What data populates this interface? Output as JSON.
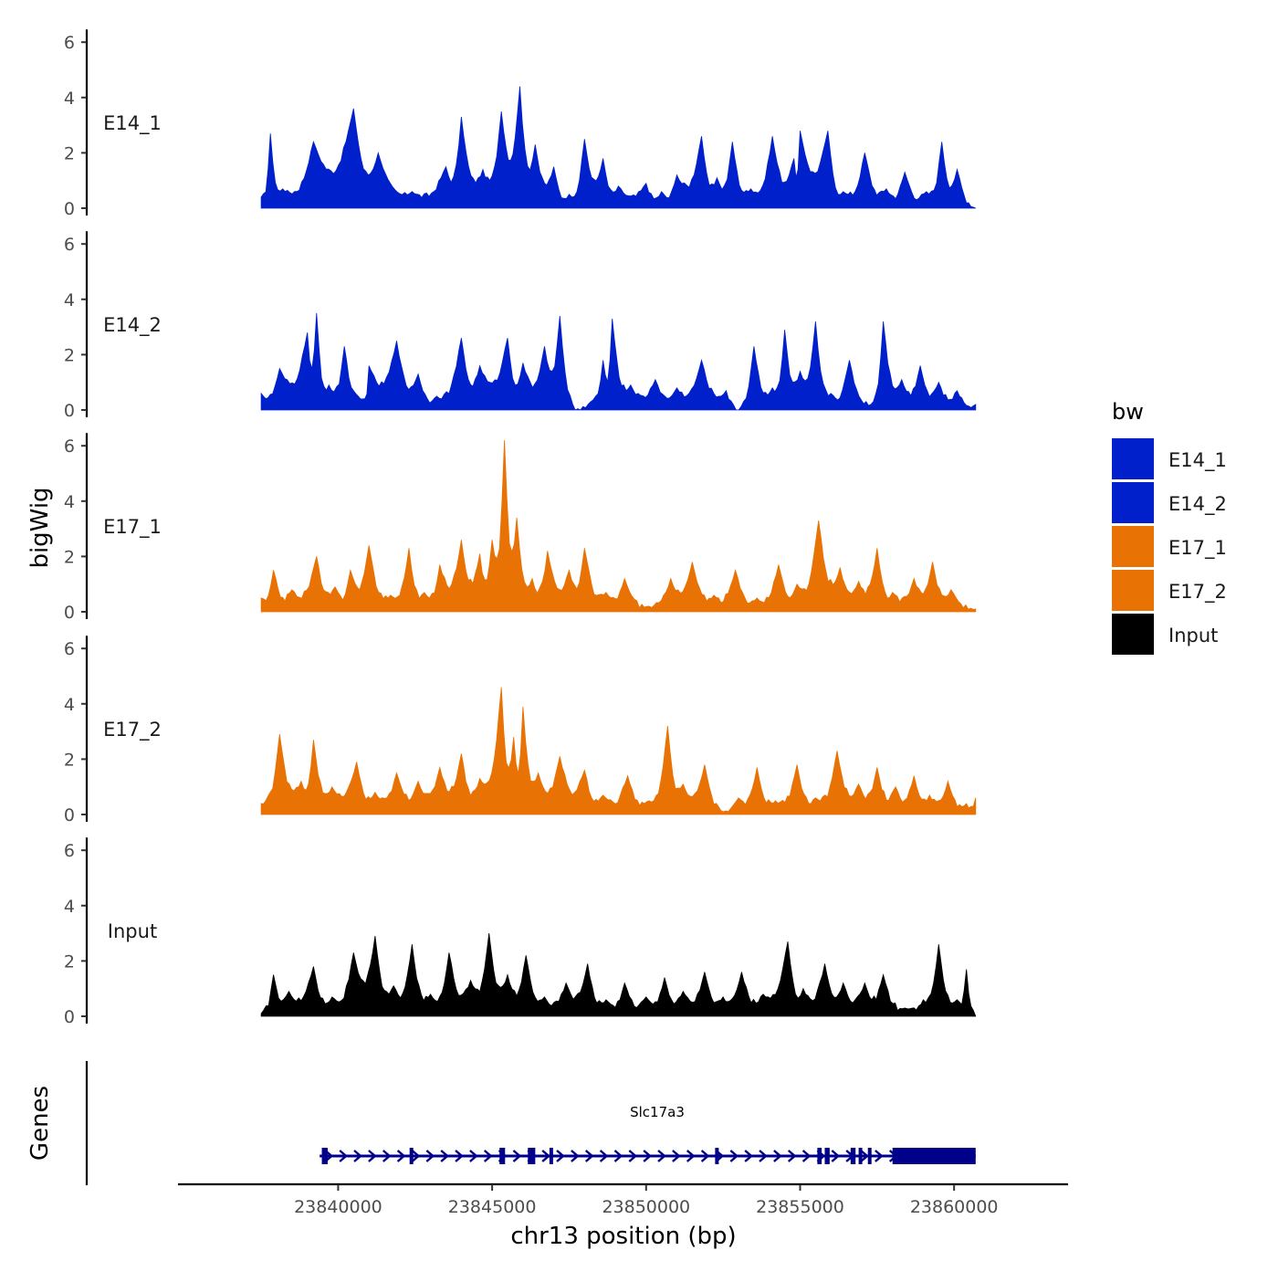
{
  "chart_data": {
    "type": "area",
    "chromosome": "chr13",
    "xlabel": "chr13 position (bp)",
    "ylabel": "bigWig",
    "genes_label": "Genes",
    "xlim": [
      23834800,
      23863700
    ],
    "x_ticks": [
      23840000,
      23845000,
      23850000,
      23855000,
      23860000
    ],
    "x_tick_labels": [
      "23840000",
      "23845000",
      "23850000",
      "23855000",
      "23860000"
    ],
    "ylim": [
      0,
      6
    ],
    "y_ticks": [
      0,
      2,
      4,
      6
    ],
    "y_tick_labels": [
      "0",
      "2",
      "4",
      "6"
    ],
    "data_range": [
      23837500,
      23860700
    ],
    "legend": {
      "title": "bw",
      "entries": [
        {
          "label": "E14_1",
          "color": "#0020CC"
        },
        {
          "label": "E14_2",
          "color": "#0020CC"
        },
        {
          "label": "E17_1",
          "color": "#E87204"
        },
        {
          "label": "E17_2",
          "color": "#E87204"
        },
        {
          "label": "Input",
          "color": "#000000"
        }
      ]
    },
    "series": [
      {
        "name": "E14_1",
        "color": "#0020CC",
        "peaks": [
          [
            23837500,
            0.4
          ],
          [
            23837800,
            2.7
          ],
          [
            23838200,
            0.7
          ],
          [
            23839200,
            2.4
          ],
          [
            23840500,
            3.6
          ],
          [
            23841300,
            2.0
          ],
          [
            23842400,
            0.6
          ],
          [
            23843500,
            1.5
          ],
          [
            23844000,
            3.3
          ],
          [
            23844700,
            1.4
          ],
          [
            23845300,
            3.5
          ],
          [
            23845900,
            4.4
          ],
          [
            23846400,
            2.3
          ],
          [
            23847000,
            1.5
          ],
          [
            23847500,
            0.5
          ],
          [
            23848000,
            2.5
          ],
          [
            23848600,
            1.8
          ],
          [
            23849100,
            0.8
          ],
          [
            23850000,
            0.9
          ],
          [
            23850500,
            0.6
          ],
          [
            23851000,
            1.2
          ],
          [
            23851800,
            2.6
          ],
          [
            23852300,
            1.1
          ],
          [
            23852800,
            2.4
          ],
          [
            23853400,
            0.7
          ],
          [
            23854100,
            2.6
          ],
          [
            23854800,
            1.8
          ],
          [
            23855000,
            2.8
          ],
          [
            23855900,
            2.8
          ],
          [
            23856400,
            0.6
          ],
          [
            23857100,
            2.0
          ],
          [
            23857800,
            0.7
          ],
          [
            23858400,
            1.3
          ],
          [
            23859100,
            0.6
          ],
          [
            23859600,
            2.4
          ],
          [
            23860100,
            1.4
          ],
          [
            23860700,
            0.0
          ]
        ]
      },
      {
        "name": "E14_2",
        "color": "#0020CC",
        "peaks": [
          [
            23837500,
            0.6
          ],
          [
            23838100,
            1.5
          ],
          [
            23839000,
            2.8
          ],
          [
            23839300,
            3.5
          ],
          [
            23839700,
            0.9
          ],
          [
            23840200,
            2.3
          ],
          [
            23840800,
            0.4
          ],
          [
            23841000,
            1.6
          ],
          [
            23841900,
            2.5
          ],
          [
            23842600,
            1.3
          ],
          [
            23843200,
            0.5
          ],
          [
            23844000,
            2.6
          ],
          [
            23844600,
            1.6
          ],
          [
            23845500,
            2.6
          ],
          [
            23846000,
            1.7
          ],
          [
            23846700,
            2.3
          ],
          [
            23847200,
            3.4
          ],
          [
            23847700,
            0.0
          ],
          [
            23848200,
            0.3
          ],
          [
            23848600,
            1.8
          ],
          [
            23848900,
            3.3
          ],
          [
            23849500,
            0.9
          ],
          [
            23850300,
            1.1
          ],
          [
            23851000,
            0.8
          ],
          [
            23851800,
            1.8
          ],
          [
            23852600,
            0.7
          ],
          [
            23853000,
            0.0
          ],
          [
            23853500,
            2.3
          ],
          [
            23854100,
            0.8
          ],
          [
            23854500,
            2.9
          ],
          [
            23855000,
            1.4
          ],
          [
            23855500,
            3.2
          ],
          [
            23856000,
            0.6
          ],
          [
            23856600,
            1.8
          ],
          [
            23857300,
            0.2
          ],
          [
            23857700,
            3.2
          ],
          [
            23858300,
            1.1
          ],
          [
            23858900,
            1.6
          ],
          [
            23859500,
            1.0
          ],
          [
            23860100,
            0.7
          ],
          [
            23860700,
            0.2
          ]
        ]
      },
      {
        "name": "E17_1",
        "color": "#E87204",
        "peaks": [
          [
            23837500,
            0.5
          ],
          [
            23837900,
            1.5
          ],
          [
            23838500,
            0.8
          ],
          [
            23839300,
            2.0
          ],
          [
            23839900,
            0.9
          ],
          [
            23840400,
            1.5
          ],
          [
            23841000,
            2.4
          ],
          [
            23841700,
            0.6
          ],
          [
            23842300,
            2.3
          ],
          [
            23842800,
            0.7
          ],
          [
            23843300,
            1.7
          ],
          [
            23844000,
            2.6
          ],
          [
            23844600,
            2.1
          ],
          [
            23845000,
            2.6
          ],
          [
            23845400,
            6.2
          ],
          [
            23845800,
            3.4
          ],
          [
            23846300,
            1.2
          ],
          [
            23846800,
            2.2
          ],
          [
            23847500,
            1.5
          ],
          [
            23848000,
            2.3
          ],
          [
            23848700,
            0.7
          ],
          [
            23849300,
            1.2
          ],
          [
            23850100,
            0.2
          ],
          [
            23850800,
            1.2
          ],
          [
            23851500,
            1.8
          ],
          [
            23852200,
            0.6
          ],
          [
            23852900,
            1.5
          ],
          [
            23853600,
            0.5
          ],
          [
            23854300,
            1.7
          ],
          [
            23854900,
            1.0
          ],
          [
            23855600,
            3.3
          ],
          [
            23856300,
            1.6
          ],
          [
            23856900,
            1.1
          ],
          [
            23857500,
            2.3
          ],
          [
            23858000,
            0.7
          ],
          [
            23858700,
            1.2
          ],
          [
            23859300,
            1.8
          ],
          [
            23859900,
            0.8
          ],
          [
            23860700,
            0.1
          ]
        ]
      },
      {
        "name": "E17_2",
        "color": "#E87204",
        "peaks": [
          [
            23837500,
            0.4
          ],
          [
            23838100,
            2.9
          ],
          [
            23838800,
            1.2
          ],
          [
            23839200,
            2.7
          ],
          [
            23839800,
            1.0
          ],
          [
            23840600,
            1.9
          ],
          [
            23841200,
            0.8
          ],
          [
            23841900,
            1.5
          ],
          [
            23842600,
            1.2
          ],
          [
            23843300,
            1.7
          ],
          [
            23844000,
            2.2
          ],
          [
            23844600,
            1.3
          ],
          [
            23845300,
            4.6
          ],
          [
            23845700,
            2.8
          ],
          [
            23846000,
            3.9
          ],
          [
            23846500,
            1.5
          ],
          [
            23847200,
            2.1
          ],
          [
            23848000,
            1.6
          ],
          [
            23848600,
            0.7
          ],
          [
            23849400,
            1.4
          ],
          [
            23850100,
            0.5
          ],
          [
            23850700,
            3.2
          ],
          [
            23851200,
            1.1
          ],
          [
            23851900,
            1.8
          ],
          [
            23852500,
            0.1
          ],
          [
            23853000,
            0.6
          ],
          [
            23853600,
            1.7
          ],
          [
            23854200,
            0.5
          ],
          [
            23854900,
            1.8
          ],
          [
            23855500,
            0.6
          ],
          [
            23856200,
            2.3
          ],
          [
            23856900,
            1.1
          ],
          [
            23857500,
            1.7
          ],
          [
            23858100,
            1.0
          ],
          [
            23858700,
            1.4
          ],
          [
            23859200,
            0.7
          ],
          [
            23859800,
            1.2
          ],
          [
            23860400,
            0.4
          ],
          [
            23860700,
            0.6
          ]
        ]
      },
      {
        "name": "Input",
        "color": "#000000",
        "peaks": [
          [
            23837500,
            0.1
          ],
          [
            23837900,
            1.5
          ],
          [
            23838400,
            0.9
          ],
          [
            23839200,
            1.8
          ],
          [
            23839800,
            0.7
          ],
          [
            23840500,
            2.3
          ],
          [
            23841200,
            2.9
          ],
          [
            23841800,
            1.1
          ],
          [
            23842400,
            2.6
          ],
          [
            23843000,
            0.8
          ],
          [
            23843600,
            2.3
          ],
          [
            23844300,
            1.3
          ],
          [
            23844900,
            3.0
          ],
          [
            23845500,
            1.5
          ],
          [
            23846100,
            2.2
          ],
          [
            23846700,
            0.7
          ],
          [
            23847400,
            1.2
          ],
          [
            23848100,
            1.9
          ],
          [
            23848700,
            0.6
          ],
          [
            23849300,
            1.2
          ],
          [
            23850000,
            0.7
          ],
          [
            23850600,
            1.4
          ],
          [
            23851200,
            0.9
          ],
          [
            23851900,
            1.6
          ],
          [
            23852500,
            0.7
          ],
          [
            23853100,
            1.6
          ],
          [
            23853800,
            0.8
          ],
          [
            23854600,
            2.7
          ],
          [
            23855100,
            1.0
          ],
          [
            23855800,
            1.9
          ],
          [
            23856400,
            1.2
          ],
          [
            23857100,
            1.2
          ],
          [
            23857700,
            1.5
          ],
          [
            23858400,
            0.3
          ],
          [
            23859000,
            0.6
          ],
          [
            23859500,
            2.6
          ],
          [
            23860100,
            0.6
          ],
          [
            23860400,
            1.7
          ],
          [
            23860700,
            0.0
          ]
        ]
      }
    ],
    "gene": {
      "name": "Slc17a3",
      "color": "#00008B",
      "start": 23839400,
      "end": 23860700,
      "exons": [
        [
          23839470,
          23839660
        ],
        [
          23842320,
          23842420
        ],
        [
          23845240,
          23845420
        ],
        [
          23846160,
          23846400
        ],
        [
          23846860,
          23846960
        ],
        [
          23852240,
          23852320
        ],
        [
          23855560,
          23855700
        ],
        [
          23855800,
          23855960
        ],
        [
          23856640,
          23856800
        ],
        [
          23856900,
          23857000
        ],
        [
          23857200,
          23857300
        ],
        [
          23858000,
          23860700
        ]
      ]
    }
  }
}
